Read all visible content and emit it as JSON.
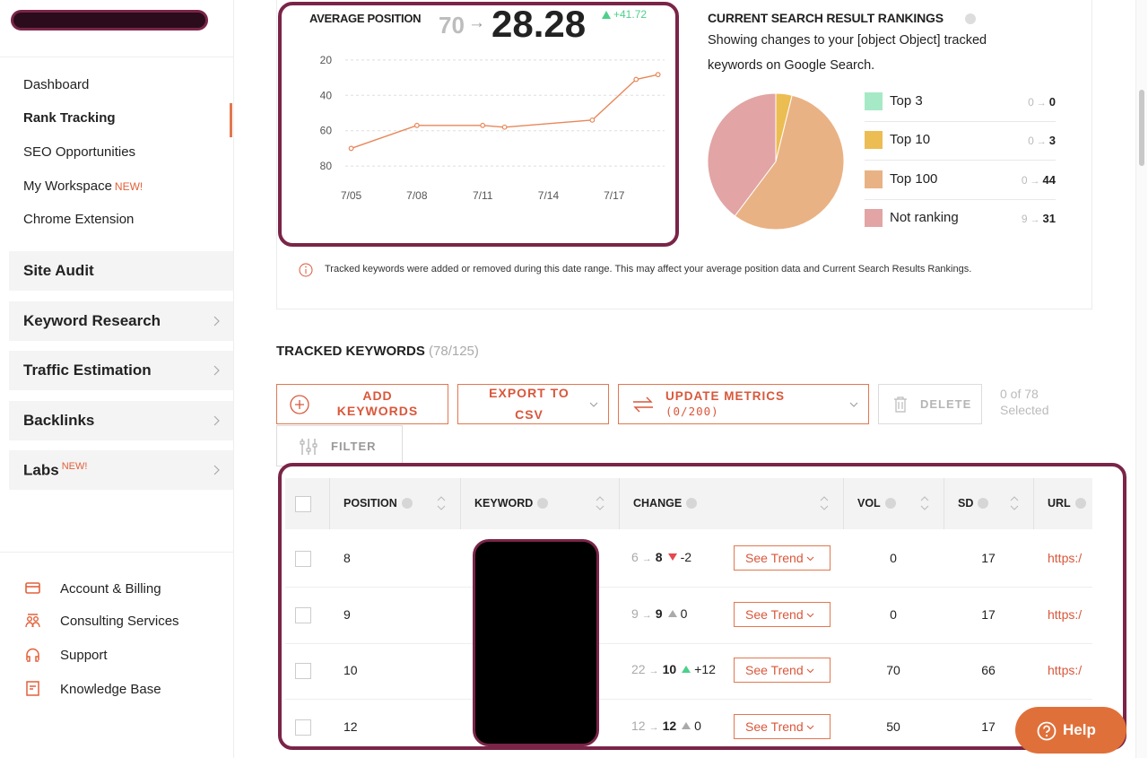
{
  "sidebar": {
    "nav": [
      "Dashboard",
      "Rank Tracking",
      "SEO Opportunities",
      "My Workspace",
      "Chrome Extension"
    ],
    "badge": "NEW!",
    "sections": [
      "Site Audit",
      "Keyword Research",
      "Traffic Estimation",
      "Backlinks",
      "Labs"
    ],
    "footer_links": [
      "Account & Billing",
      "Consulting Services",
      "Support",
      "Knowledge Base"
    ]
  },
  "arrow": "→",
  "average_position": {
    "title": "AVERAGE POSITION",
    "previous": "70",
    "current": "28.28",
    "change": "+41.72",
    "chart": {
      "type": "line",
      "x": [
        5,
        8,
        11,
        12,
        16,
        18,
        19
      ],
      "values": [
        70,
        57,
        57,
        58,
        54,
        31,
        28.28
      ],
      "xlim": [
        4.2,
        19.3
      ],
      "xticks": [
        {
          "value": 5,
          "label": "7/05"
        },
        {
          "value": 8,
          "label": "7/08"
        },
        {
          "value": 11,
          "label": "7/11"
        },
        {
          "value": 14,
          "label": "7/14"
        },
        {
          "value": 17,
          "label": "7/17"
        }
      ],
      "ylim": [
        85,
        14
      ],
      "yticks": [
        20,
        40,
        60,
        80
      ],
      "grid": true,
      "color": "#e8875a"
    }
  },
  "rankings": {
    "title": "CURRENT SEARCH RESULT RANKINGS",
    "subtitle": "Showing changes to your [object Object] tracked keywords on Google Search.",
    "chart": {
      "type": "pie",
      "categories": [
        "Top 3",
        "Top 10",
        "Top 100",
        "Not ranking"
      ],
      "previous_values": [
        0,
        0,
        0,
        9
      ],
      "values": [
        0,
        3,
        44,
        31
      ],
      "colors": [
        "#a6e9c6",
        "#ecbd52",
        "#e9b284",
        "#e2a4a4"
      ]
    }
  },
  "notice": "Tracked keywords were added or removed during this date range. This may affect your average position data and Current Search Results Rankings.",
  "tracked": {
    "title": "TRACKED KEYWORDS",
    "count": "(78/125)",
    "buttons": {
      "add": "ADD KEYWORDS",
      "export": "EXPORT TO CSV",
      "update": "UPDATE METRICS",
      "update_count": "(0/200)",
      "delete": "DELETE",
      "filter": "FILTER"
    },
    "selection": "0 of 78 Selected"
  },
  "table": {
    "headers": [
      "POSITION",
      "KEYWORD",
      "CHANGE",
      "VOL",
      "SD",
      "URL"
    ],
    "trend_button": "See Trend",
    "rows": [
      {
        "position": "8",
        "from": "6",
        "to": "8",
        "trend": "down",
        "delta": "-2",
        "vol": "0",
        "sd": "17",
        "url": "https:/"
      },
      {
        "position": "9",
        "from": "9",
        "to": "9",
        "trend": "none",
        "delta": "0",
        "vol": "0",
        "sd": "17",
        "url": "https:/"
      },
      {
        "position": "10",
        "from": "22",
        "to": "10",
        "trend": "up",
        "delta": "+12",
        "vol": "70",
        "sd": "66",
        "url": "https:/"
      },
      {
        "position": "12",
        "from": "12",
        "to": "12",
        "trend": "none",
        "delta": "0",
        "vol": "50",
        "sd": "17",
        "url": "https:/"
      }
    ]
  },
  "help": "Help"
}
